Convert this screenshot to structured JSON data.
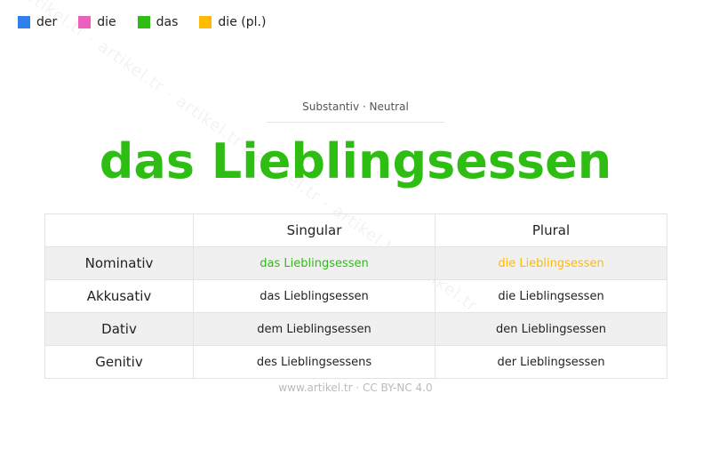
{
  "legend": [
    {
      "label": "der",
      "color": "#2f80ed"
    },
    {
      "label": "die",
      "color": "#eb5fbd"
    },
    {
      "label": "das",
      "color": "#2ebd12"
    },
    {
      "label": "die (pl.)",
      "color": "#ffbb00"
    }
  ],
  "watermark": "artikel.tr - artikel.tr - artikel.tr - artikel.tr - artikel.tr - artikel.tr",
  "subtitle": "Substantiv · Neutral",
  "title": "das Lieblingsessen",
  "table": {
    "headers": [
      "",
      "Singular",
      "Plural"
    ],
    "rows": [
      {
        "case": "Nominativ",
        "singular": "das Lieblingsessen",
        "plural": "die Lieblingsessen"
      },
      {
        "case": "Akkusativ",
        "singular": "das Lieblingsessen",
        "plural": "die Lieblingsessen"
      },
      {
        "case": "Dativ",
        "singular": "dem Lieblingsessen",
        "plural": "den Lieblingsessen"
      },
      {
        "case": "Genitiv",
        "singular": "des Lieblingsessens",
        "plural": "der Lieblingsessen"
      }
    ]
  },
  "footer": "www.artikel.tr · CC BY-NC 4.0"
}
